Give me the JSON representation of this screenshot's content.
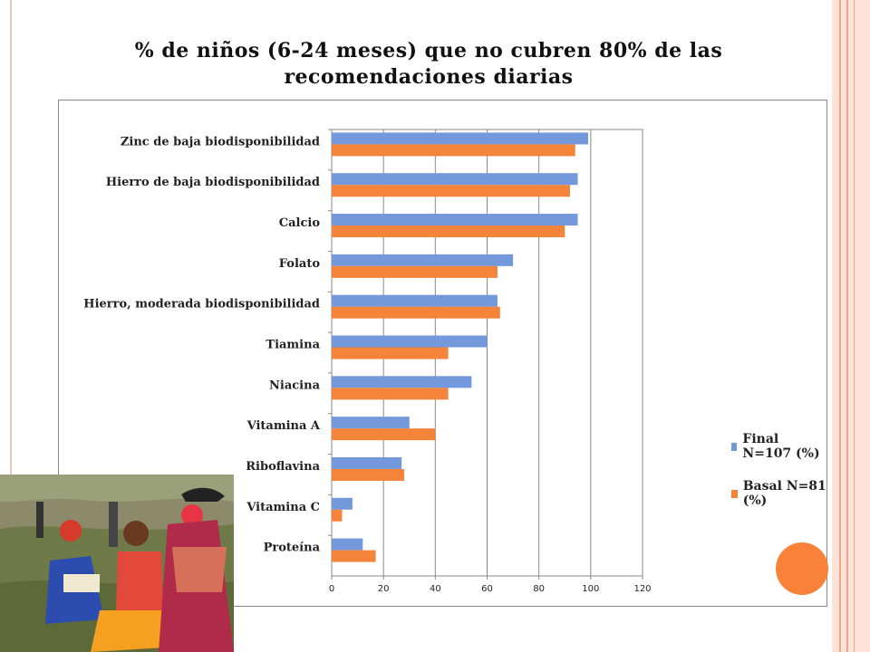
{
  "slide": {
    "title": "% de niños (6-24 meses) que no cubren 80% de las recomendaciones diarias"
  },
  "colors": {
    "final": "#7398dc",
    "basal": "#f5843b",
    "accent_circle": "#f8823a",
    "decor": "#f2a488"
  },
  "chart_data": {
    "type": "bar",
    "orientation": "horizontal",
    "categories": [
      "Zinc de baja biodisponibilidad",
      "Hierro de baja biodisponibilidad",
      "Calcio",
      "Folato",
      "Hierro, moderada biodisponibilidad",
      "Tiamina",
      "Niacina",
      "Vitamina A",
      "Riboflavina",
      "Vitamina C",
      "Proteína"
    ],
    "series": [
      {
        "name": "Final N=107 (%)",
        "values": [
          99,
          95,
          95,
          70,
          64,
          60,
          54,
          30,
          27,
          8,
          12
        ]
      },
      {
        "name": "Basal N=81 (%)",
        "values": [
          94,
          92,
          90,
          64,
          65,
          45,
          45,
          40,
          28,
          4,
          17
        ]
      }
    ],
    "xlim": [
      0,
      120
    ],
    "xticks": [
      0,
      20,
      40,
      60,
      80,
      100,
      120
    ],
    "grid": true,
    "legend_position": "right"
  },
  "legend": {
    "final_label": "Final N=107 (%)",
    "basal_label": "Basal N=81 (%)"
  },
  "icons": {
    "photo": "children-photo",
    "circle": "decorative-circle"
  }
}
